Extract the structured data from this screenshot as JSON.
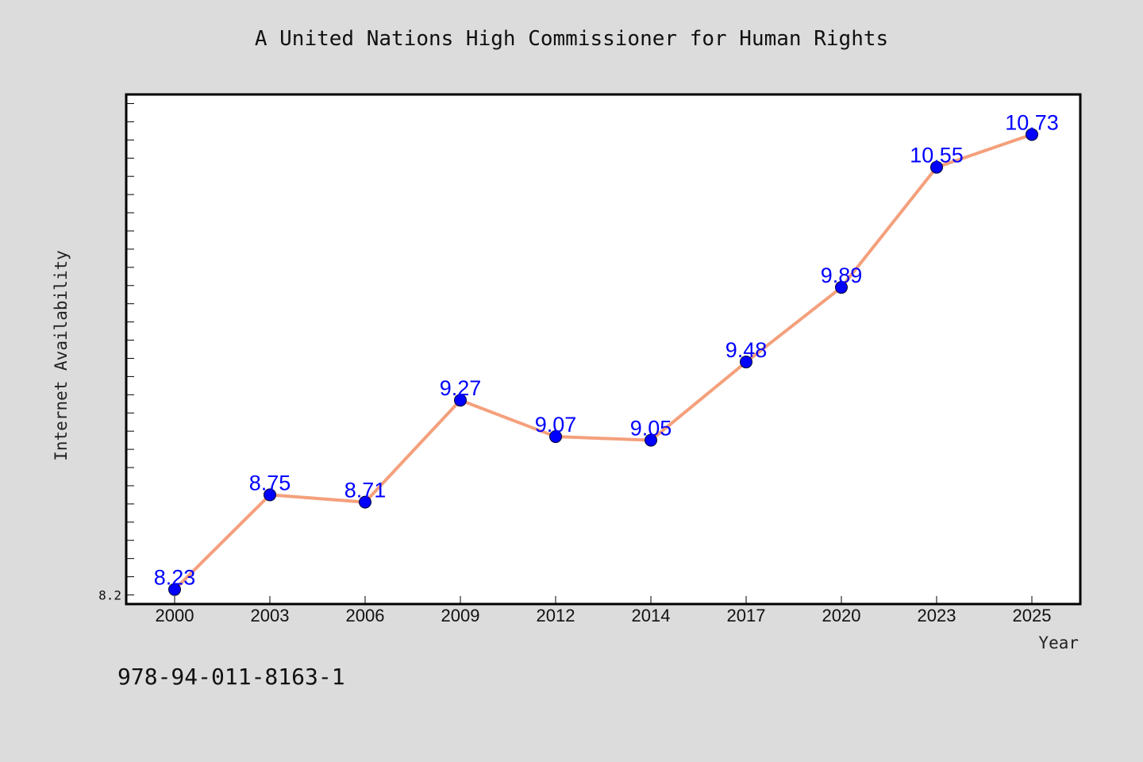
{
  "chart_data": {
    "type": "line",
    "title": "A United Nations High Commissioner for Human Rights",
    "xlabel": "Year",
    "ylabel": "Internet Availability",
    "categories": [
      "2000",
      "2003",
      "2006",
      "2009",
      "2012",
      "2014",
      "2017",
      "2020",
      "2023",
      "2025"
    ],
    "series": [
      {
        "values": [
          8.23,
          8.75,
          8.71,
          9.27,
          9.07,
          9.05,
          9.48,
          9.89,
          10.55,
          10.73
        ]
      }
    ],
    "data_labels": [
      "8.23",
      "8.75",
      "8.71",
      "9.27",
      "9.07",
      "9.05",
      "9.48",
      "9.89",
      "10.55",
      "10.73"
    ],
    "ytick_labels": [
      "8.2"
    ],
    "ylim": [
      8.15,
      10.95
    ],
    "grid": false,
    "colors": {
      "line": "#f4a07c",
      "marker": "#0000ff",
      "label": "#0000ff",
      "background": "#dcdcdc",
      "plot_background": "#ffffff"
    }
  },
  "footer": {
    "isbn": "978-94-011-8163-1"
  }
}
